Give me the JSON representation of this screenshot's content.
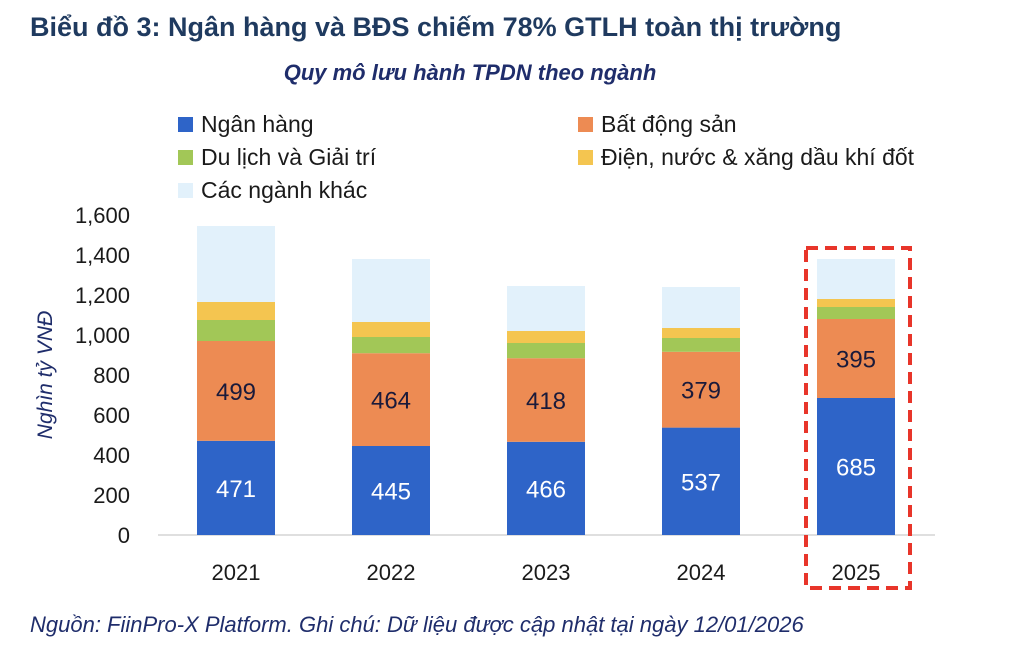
{
  "chart_data": {
    "type": "bar",
    "stacked": true,
    "title": "Biểu đồ 3: Ngân hàng và BĐS chiếm 78% GTLH toàn thị trường",
    "subtitle": "Quy mô lưu hành TPDN theo ngành",
    "ylabel": "Nghìn tỷ VNĐ",
    "xlabel": "",
    "ylim": [
      0,
      1600
    ],
    "yticks": [
      "0",
      "200",
      "400",
      "600",
      "800",
      "1,000",
      "1,200",
      "1,400",
      "1,600"
    ],
    "categories": [
      "2021",
      "2022",
      "2023",
      "2024",
      "2025"
    ],
    "series": [
      {
        "name": "Ngân hàng",
        "color": "#2e64c8",
        "values": [
          471,
          445,
          466,
          537,
          685
        ],
        "labels": [
          "471",
          "445",
          "466",
          "537",
          "685"
        ]
      },
      {
        "name": "Bất động sản",
        "color": "#ed8b53",
        "values": [
          499,
          464,
          418,
          379,
          395
        ],
        "labels": [
          "499",
          "464",
          "418",
          "379",
          "395"
        ]
      },
      {
        "name": "Du lịch và Giải trí",
        "color": "#a2c757",
        "values": [
          105,
          81,
          76,
          69,
          60
        ]
      },
      {
        "name": "Điện, nước & xăng dầu khí đốt",
        "color": "#f4c550",
        "values": [
          90,
          75,
          60,
          50,
          40
        ]
      },
      {
        "name": "Các ngành khác",
        "color": "#e2f1fb",
        "values": [
          380,
          315,
          225,
          205,
          200
        ]
      }
    ],
    "highlight": {
      "category": "2025",
      "color": "#e8352a"
    },
    "legend": "top",
    "grid": false
  },
  "source": "Nguồn: FiinPro-X Platform. Ghi chú: Dữ liệu được cập nhật tại ngày 12/01/2026"
}
